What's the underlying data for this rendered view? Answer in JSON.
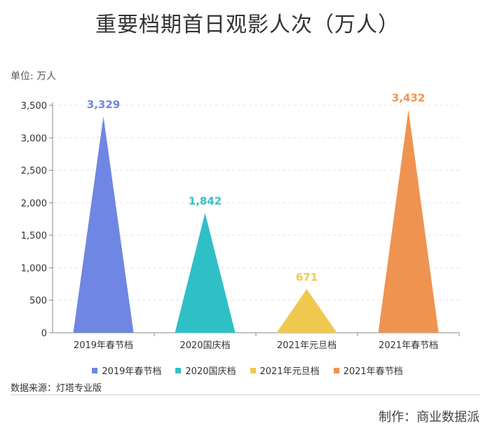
{
  "title": "重要档期首日观影人次（万人）",
  "unit_label": "单位: 万人",
  "source": "数据来源：灯塔专业版",
  "credit": "制作：商业数据派",
  "chart_data": {
    "type": "bar",
    "shape": "triangle",
    "title": "重要档期首日观影人次（万人）",
    "categories": [
      "2019年春节档",
      "2020国庆档",
      "2021年元旦档",
      "2021年春节档"
    ],
    "values": [
      3329,
      1842,
      671,
      3432
    ],
    "value_labels": [
      "3,329",
      "1,842",
      "671",
      "3,432"
    ],
    "colors": [
      "#6f86e3",
      "#2ec0c6",
      "#f0c84f",
      "#ef9350"
    ],
    "ylim": [
      0,
      3500
    ],
    "yticks": [
      0,
      500,
      1000,
      1500,
      2000,
      2500,
      3000,
      3500
    ],
    "ytick_labels": [
      "0",
      "500",
      "1,000",
      "1,500",
      "2,000",
      "2,500",
      "3,000",
      "3,500"
    ],
    "grid": true,
    "legend": "bottom"
  }
}
